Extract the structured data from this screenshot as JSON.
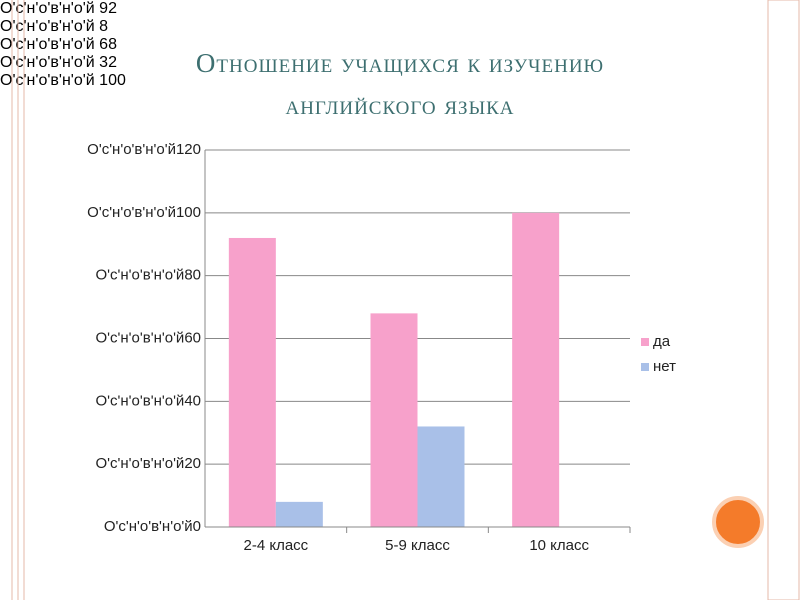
{
  "chart_data": {
    "type": "bar",
    "title": "Отношение учащихся к изучению английского языка",
    "categories": [
      "2-4 класс",
      "5-9 класс",
      "10 класс"
    ],
    "series": [
      {
        "name": "да",
        "color": "#f7a1cb",
        "values": [
          92,
          68,
          100
        ],
        "value_labels": [
          "O'с'н'о'в'н'о'й\n92",
          "O'с'н'о'в'н'о'й\n68",
          "O'с'н'о'в'н'о'й\n100"
        ]
      },
      {
        "name": "нет",
        "color": "#a9c0e8",
        "values": [
          8,
          32,
          null
        ],
        "value_labels": [
          "O'с'н'о'в'н'о'й\n8",
          "O'с'н'о'в'н'о'й\n32",
          null
        ]
      }
    ],
    "ylim": [
      0,
      120
    ],
    "yticks": [
      {
        "value": 0,
        "label": "O'с'н'о'в'н'о'й0"
      },
      {
        "value": 20,
        "label": "O'с'н'о'в'н'о'й20"
      },
      {
        "value": 40,
        "label": "O'с'н'о'в'н'о'й40"
      },
      {
        "value": 60,
        "label": "O'с'н'о'в'н'о'й60"
      },
      {
        "value": 80,
        "label": "O'с'н'о'в'н'о'й80"
      },
      {
        "value": 100,
        "label": "O'с'н'о'в'н'о'й100"
      },
      {
        "value": 120,
        "label": "O'с'н'о'в'н'о'й120"
      }
    ],
    "grid": true,
    "legend": "right"
  }
}
